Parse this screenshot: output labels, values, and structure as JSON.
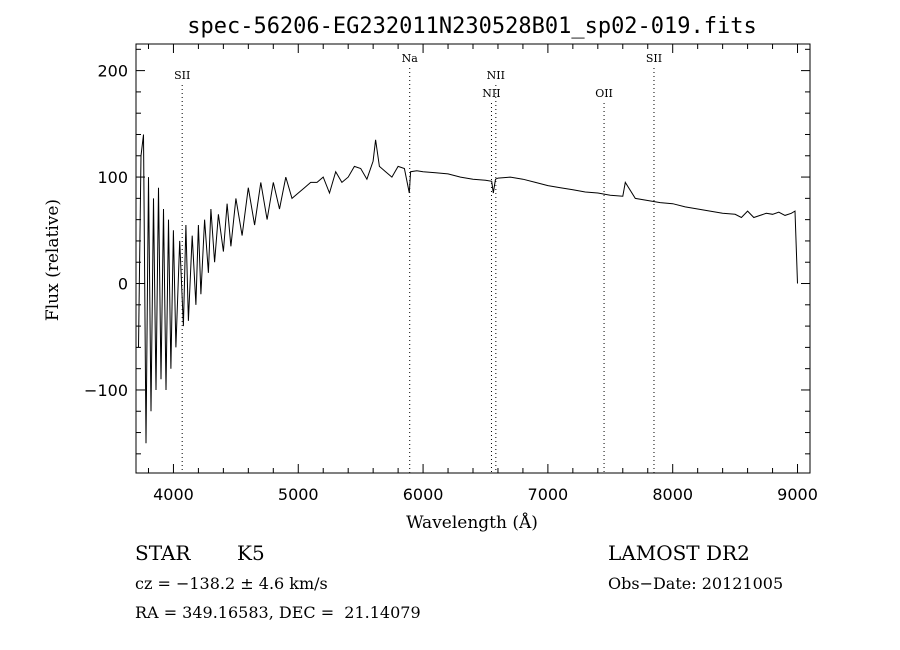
{
  "chart_data": {
    "type": "line",
    "title": "spec-56206-EG232011N230528B01_sp02-019.fits",
    "xlabel": "Wavelength (Å)",
    "ylabel": "Flux (relative)",
    "xlim": [
      3700,
      9100
    ],
    "ylim": [
      -178,
      225
    ],
    "x_ticks": [
      4000,
      5000,
      6000,
      7000,
      8000,
      9000
    ],
    "y_ticks": [
      -100,
      0,
      100,
      200
    ],
    "grid": false,
    "series": [
      {
        "x": [
          3720,
          3740,
          3760,
          3780,
          3800,
          3820,
          3840,
          3860,
          3880,
          3900,
          3920,
          3940,
          3960,
          3980,
          4000,
          4020,
          4050,
          4080,
          4100,
          4120,
          4150,
          4180,
          4200,
          4220,
          4250,
          4280,
          4300,
          4330,
          4360,
          4400,
          4430,
          4460,
          4500,
          4550,
          4600,
          4650,
          4700,
          4750,
          4800,
          4850,
          4900,
          4950,
          5000,
          5050,
          5100,
          5150,
          5200,
          5250,
          5300,
          5350,
          5400,
          5450,
          5500,
          5550,
          5600,
          5620,
          5650,
          5700,
          5750,
          5800,
          5850,
          5890,
          5900,
          5950,
          6000,
          6100,
          6200,
          6300,
          6400,
          6500,
          6550,
          6563,
          6580,
          6600,
          6700,
          6800,
          6900,
          7000,
          7100,
          7200,
          7300,
          7400,
          7500,
          7600,
          7620,
          7700,
          7800,
          7900,
          8000,
          8100,
          8200,
          8300,
          8400,
          8500,
          8550,
          8600,
          8650,
          8700,
          8750,
          8800,
          8850,
          8900,
          8950,
          8980,
          9000
        ],
        "y": [
          -60,
          120,
          140,
          -150,
          100,
          -120,
          80,
          -100,
          90,
          -90,
          70,
          -100,
          60,
          -80,
          50,
          -60,
          40,
          -40,
          55,
          -35,
          45,
          -20,
          55,
          -10,
          60,
          10,
          70,
          20,
          65,
          30,
          75,
          35,
          80,
          45,
          90,
          55,
          95,
          60,
          95,
          70,
          100,
          80,
          85,
          90,
          95,
          95,
          100,
          85,
          105,
          95,
          100,
          110,
          108,
          98,
          115,
          135,
          110,
          105,
          100,
          110,
          108,
          85,
          105,
          106,
          105,
          104,
          103,
          100,
          98,
          97,
          96,
          85,
          98,
          99,
          100,
          98,
          95,
          92,
          90,
          88,
          86,
          85,
          83,
          82,
          95,
          80,
          78,
          76,
          75,
          72,
          70,
          68,
          66,
          65,
          62,
          68,
          62,
          64,
          66,
          65,
          67,
          64,
          66,
          68,
          0
        ]
      }
    ],
    "line_labels": [
      {
        "x": 4070,
        "label": "SII",
        "row": 1
      },
      {
        "x": 5893,
        "label": "Na",
        "row": 0
      },
      {
        "x": 6548,
        "label": "NII",
        "row": 2
      },
      {
        "x": 6583,
        "label": "NII",
        "row": 1
      },
      {
        "x": 7450,
        "label": "OII",
        "row": 2
      },
      {
        "x": 7850,
        "label": "SII",
        "row": 0
      }
    ]
  },
  "info": {
    "object_class": "STAR",
    "subclass": "K5",
    "survey": "LAMOST DR2",
    "cz": "cz = −138.2 ± 4.6 km/s",
    "obs_date": "Obs−Date: 20121005",
    "coords": "RA = 349.16583, DEC =  21.14079"
  }
}
